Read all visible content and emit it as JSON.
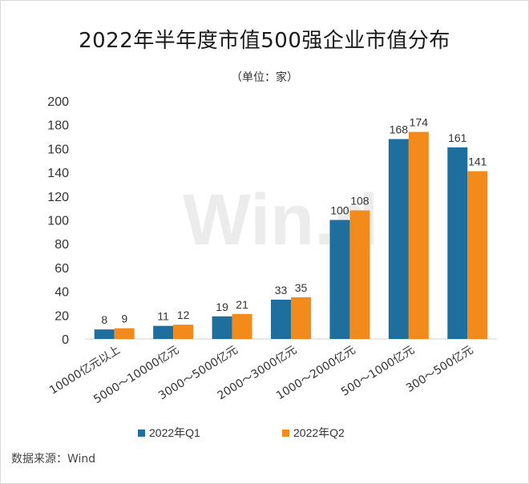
{
  "title": "2022年半年度市值500强企业市值分布",
  "subtitle": "（单位：家）",
  "source": "数据来源：Wind",
  "watermark": "Win.d",
  "colors": {
    "q1": "#1f6f9e",
    "q2": "#f28a1c"
  },
  "chart_data": {
    "type": "bar",
    "categories": [
      "10000亿元以上",
      "5000～10000亿元",
      "3000～5000亿元",
      "2000～3000亿元",
      "1000～2000亿元",
      "500～1000亿元",
      "300～500亿元"
    ],
    "series": [
      {
        "name": "2022年Q1",
        "values": [
          8,
          11,
          19,
          33,
          100,
          168,
          161
        ]
      },
      {
        "name": "2022年Q2",
        "values": [
          9,
          12,
          21,
          35,
          108,
          174,
          141
        ]
      }
    ],
    "ylim": [
      0,
      200
    ],
    "yticks": [
      0,
      20,
      40,
      60,
      80,
      100,
      120,
      140,
      160,
      180,
      200
    ],
    "grid": false,
    "legend": "bottom"
  }
}
